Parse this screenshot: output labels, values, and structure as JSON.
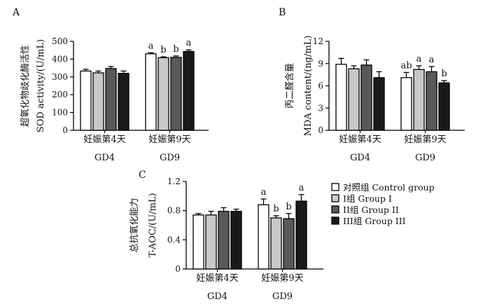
{
  "legend": [
    {
      "label": "对照组 Control group",
      "color": "#ffffff"
    },
    {
      "label": "I组 Group I",
      "color": "#c8c8c8"
    },
    {
      "label": "II组 Group II",
      "color": "#595959"
    },
    {
      "label": "III组 Group III",
      "color": "#1a1a1a"
    }
  ],
  "chart_data": [
    {
      "panel": "A",
      "type": "bar",
      "ylabel_lines": [
        "超氧化物歧化酶活性",
        "SOD activity/(U/mL)"
      ],
      "ylim": [
        0,
        500
      ],
      "yticks": [
        "0",
        "100",
        "200",
        "300",
        "400",
        "500"
      ],
      "groups": [
        {
          "label": "妊娠第4天",
          "gd": "GD4"
        },
        {
          "label": "妊娠第9天",
          "gd": "GD9"
        }
      ],
      "series": [
        {
          "name": "对照组 Control group",
          "values": [
            333,
            430
          ],
          "errors": [
            10,
            6
          ],
          "sig": [
            "",
            "a"
          ]
        },
        {
          "name": "I组 Group I",
          "values": [
            323,
            408
          ],
          "errors": [
            10,
            5
          ],
          "sig": [
            "",
            "b"
          ]
        },
        {
          "name": "II组 Group II",
          "values": [
            347,
            410
          ],
          "errors": [
            11,
            8
          ],
          "sig": [
            "",
            "b"
          ]
        },
        {
          "name": "III组 Group III",
          "values": [
            320,
            443
          ],
          "errors": [
            13,
            9
          ],
          "sig": [
            "",
            "a"
          ]
        }
      ]
    },
    {
      "panel": "B",
      "type": "bar",
      "ylabel_lines": [
        "丙二醛含量",
        "MDA content/(ng/mL)"
      ],
      "ylim": [
        0,
        12
      ],
      "yticks": [
        "0",
        "3",
        "6",
        "9",
        "12"
      ],
      "groups": [
        {
          "label": "妊娠第4天",
          "gd": "GD4"
        },
        {
          "label": "妊娠第9天",
          "gd": "GD9"
        }
      ],
      "series": [
        {
          "name": "对照组 Control group",
          "values": [
            8.9,
            7.1
          ],
          "errors": [
            0.8,
            0.7
          ],
          "sig": [
            "",
            "ab"
          ]
        },
        {
          "name": "I组 Group I",
          "values": [
            8.3,
            8.2
          ],
          "errors": [
            0.4,
            0.5
          ],
          "sig": [
            "",
            "a"
          ]
        },
        {
          "name": "II组 Group II",
          "values": [
            8.8,
            7.9
          ],
          "errors": [
            0.7,
            0.7
          ],
          "sig": [
            "",
            "a"
          ]
        },
        {
          "name": "III组 Group III",
          "values": [
            7.1,
            6.4
          ],
          "errors": [
            0.8,
            0.3
          ],
          "sig": [
            "",
            "b"
          ]
        }
      ]
    },
    {
      "panel": "C",
      "type": "bar",
      "ylabel_lines": [
        "总抗氧化能力",
        "T-AOC/(U/mL)"
      ],
      "ylim": [
        0,
        1.2
      ],
      "yticks": [
        "0",
        "0.4",
        "0.8",
        "1.2"
      ],
      "groups": [
        {
          "label": "妊娠第4天",
          "gd": "GD4"
        },
        {
          "label": "妊娠第9天",
          "gd": "GD9"
        }
      ],
      "series": [
        {
          "name": "对照组 Control group",
          "values": [
            0.74,
            0.88
          ],
          "errors": [
            0.02,
            0.08
          ],
          "sig": [
            "",
            "a"
          ]
        },
        {
          "name": "I组 Group I",
          "values": [
            0.74,
            0.7
          ],
          "errors": [
            0.05,
            0.03
          ],
          "sig": [
            "",
            "b"
          ]
        },
        {
          "name": "II组 Group II",
          "values": [
            0.79,
            0.69
          ],
          "errors": [
            0.05,
            0.07
          ],
          "sig": [
            "",
            "b"
          ]
        },
        {
          "name": "III组 Group III",
          "values": [
            0.79,
            0.93
          ],
          "errors": [
            0.03,
            0.09
          ],
          "sig": [
            "",
            "a"
          ]
        }
      ]
    }
  ]
}
